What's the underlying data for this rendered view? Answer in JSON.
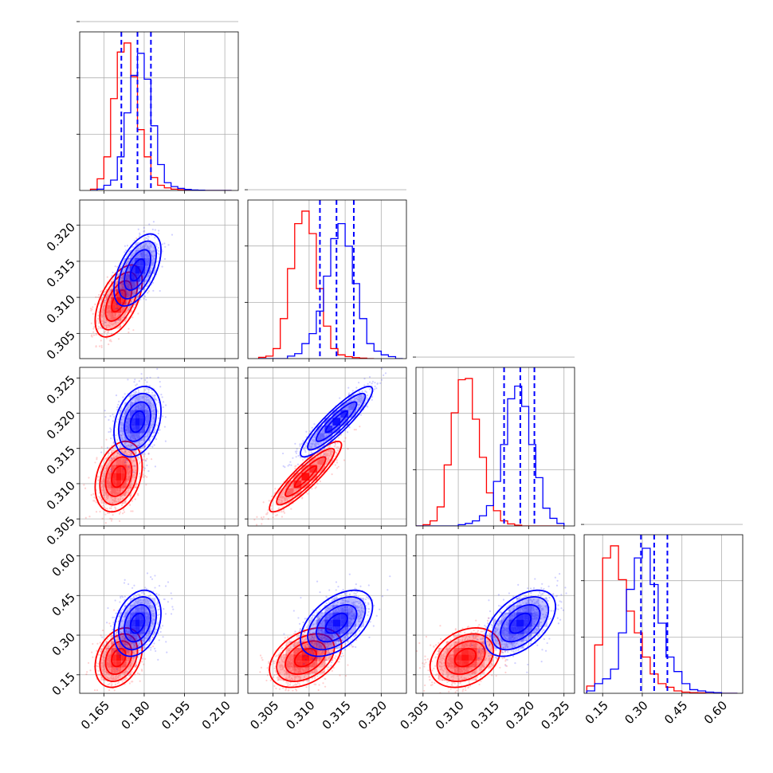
{
  "chart_data": {
    "type": "corner",
    "colors": {
      "series_red": "#ff0000",
      "series_blue": "#0000ff",
      "quantile_lines": "#0000ff"
    },
    "grid": true,
    "parameters": [
      {
        "index": 0,
        "range": [
          0.156,
          0.215
        ],
        "ticks": [
          0.165,
          0.18,
          0.195,
          0.21
        ],
        "tick_labels": [
          "0.165",
          "0.180",
          "0.195",
          "0.210"
        ]
      },
      {
        "index": 1,
        "range": [
          0.3015,
          0.3235
        ],
        "ticks": [
          0.305,
          0.31,
          0.315,
          0.32
        ],
        "tick_labels": [
          "0.305",
          "0.310",
          "0.315",
          "0.320"
        ]
      },
      {
        "index": 2,
        "range": [
          0.304,
          0.3265
        ],
        "ticks": [
          0.305,
          0.31,
          0.315,
          0.32,
          0.325
        ],
        "tick_labels": [
          "0.305",
          "0.310",
          "0.315",
          "0.320",
          "0.325"
        ]
      },
      {
        "index": 3,
        "range": [
          0.08,
          0.68
        ],
        "ticks": [
          0.15,
          0.3,
          0.45,
          0.6
        ],
        "tick_labels": [
          "0.15",
          "0.30",
          "0.45",
          "0.60"
        ]
      }
    ],
    "series": [
      {
        "color": "#ff0000",
        "means": [
          0.1705,
          0.3095,
          0.311,
          0.215
        ],
        "sigmas": [
          0.0035,
          0.002,
          0.002,
          0.045
        ],
        "correlations": [
          [
            0,
            1,
            0.55
          ],
          [
            0,
            2,
            0.3
          ],
          [
            0,
            3,
            0.3
          ],
          [
            1,
            2,
            0.9
          ],
          [
            1,
            3,
            0.4
          ],
          [
            2,
            3,
            0.3
          ]
        ],
        "histograms": {
          "p0": {
            "bins": [
              0.16,
              0.1625,
              0.165,
              0.1675,
              0.17,
              0.1725,
              0.175,
              0.1775,
              0.18,
              0.1825,
              0.185,
              0.1875,
              0.19,
              0.1925,
              0.195,
              0.1975,
              0.2,
              0.2025,
              0.205,
              0.2075,
              0.21,
              0.2125
            ],
            "counts": [
              5,
              45,
              130,
              355,
              535,
              570,
              440,
              235,
              130,
              50,
              20,
              10,
              5,
              3,
              2,
              0,
              0,
              0,
              0,
              0,
              0
            ]
          },
          "p1": {
            "bins": [
              0.303,
              0.304,
              0.305,
              0.306,
              0.307,
              0.308,
              0.309,
              0.31,
              0.311,
              0.312,
              0.313,
              0.314,
              0.315,
              0.316,
              0.317,
              0.318,
              0.319
            ],
            "counts": [
              5,
              10,
              40,
              160,
              360,
              540,
              590,
              500,
              280,
              130,
              40,
              15,
              8,
              4,
              2,
              0
            ]
          },
          "p2": {
            "bins": [
              0.304,
              0.305,
              0.306,
              0.307,
              0.308,
              0.309,
              0.31,
              0.311,
              0.312,
              0.313,
              0.314,
              0.315,
              0.316,
              0.317,
              0.318,
              0.319,
              0.32,
              0.321,
              0.322,
              0.323,
              0.324,
              0.325
            ],
            "counts": [
              0,
              5,
              20,
              75,
              240,
              445,
              575,
              580,
              420,
              270,
              130,
              60,
              20,
              8,
              3,
              0,
              0,
              0,
              0,
              0,
              0
            ]
          },
          "p3": {
            "bins": [
              0.09,
              0.12,
              0.15,
              0.18,
              0.21,
              0.24,
              0.27,
              0.3,
              0.33,
              0.36,
              0.39,
              0.42,
              0.45,
              0.48,
              0.51,
              0.54,
              0.57,
              0.6,
              0.63,
              0.66
            ],
            "counts": [
              30,
              200,
              560,
              610,
              470,
              340,
              250,
              150,
              80,
              40,
              25,
              10,
              5,
              3,
              2,
              0,
              0,
              0,
              0
            ]
          }
        }
      },
      {
        "color": "#0000ff",
        "means": [
          0.1775,
          0.3138,
          0.3188,
          0.345
        ],
        "sigmas": [
          0.0035,
          0.002,
          0.002,
          0.05
        ],
        "correlations": [
          [
            0,
            1,
            0.55
          ],
          [
            0,
            2,
            0.3
          ],
          [
            0,
            3,
            0.3
          ],
          [
            1,
            2,
            0.9
          ],
          [
            1,
            3,
            0.5
          ],
          [
            2,
            3,
            0.5
          ]
        ],
        "quantiles": {
          "p0": [
            0.1715,
            0.1775,
            0.1825
          ],
          "p1": [
            0.3115,
            0.3138,
            0.3162
          ],
          "p2": [
            0.3165,
            0.3188,
            0.3208
          ],
          "p3": [
            0.295,
            0.345,
            0.395
          ]
        },
        "histograms": {
          "p0": {
            "bins": [
              0.16,
              0.1625,
              0.165,
              0.1675,
              0.17,
              0.1725,
              0.175,
              0.1775,
              0.18,
              0.1825,
              0.185,
              0.1875,
              0.19,
              0.1925,
              0.195,
              0.1975,
              0.2,
              0.2025,
              0.205,
              0.2075,
              0.21,
              0.2125
            ],
            "counts": [
              0,
              5,
              20,
              40,
              130,
              300,
              445,
              530,
              430,
              250,
              100,
              30,
              15,
              8,
              4,
              2,
              1,
              0,
              0,
              0,
              0
            ]
          },
          "p1": {
            "bins": [
              0.303,
              0.304,
              0.305,
              0.306,
              0.307,
              0.308,
              0.309,
              0.31,
              0.311,
              0.312,
              0.313,
              0.314,
              0.315,
              0.316,
              0.317,
              0.318,
              0.319,
              0.32,
              0.321,
              0.322,
              0.323
            ],
            "counts": [
              0,
              0,
              0,
              0,
              10,
              20,
              60,
              100,
              190,
              330,
              480,
              540,
              450,
              300,
              160,
              60,
              30,
              15,
              8,
              0
            ]
          },
          "p2": {
            "bins": [
              0.304,
              0.305,
              0.306,
              0.307,
              0.308,
              0.309,
              0.31,
              0.311,
              0.312,
              0.313,
              0.314,
              0.315,
              0.316,
              0.317,
              0.318,
              0.319,
              0.32,
              0.321,
              0.322,
              0.323,
              0.324,
              0.325
            ],
            "counts": [
              0,
              0,
              0,
              0,
              0,
              0,
              5,
              10,
              20,
              40,
              80,
              175,
              320,
              500,
              550,
              470,
              320,
              190,
              70,
              30,
              10
            ]
          },
          "p3": {
            "bins": [
              0.09,
              0.12,
              0.15,
              0.18,
              0.21,
              0.24,
              0.27,
              0.3,
              0.33,
              0.36,
              0.39,
              0.42,
              0.45,
              0.48,
              0.51,
              0.54,
              0.57,
              0.6,
              0.63,
              0.66
            ],
            "counts": [
              10,
              40,
              60,
              100,
              250,
              430,
              560,
              600,
              450,
              290,
              150,
              90,
              40,
              15,
              10,
              5,
              3,
              0,
              0
            ]
          }
        }
      }
    ]
  }
}
